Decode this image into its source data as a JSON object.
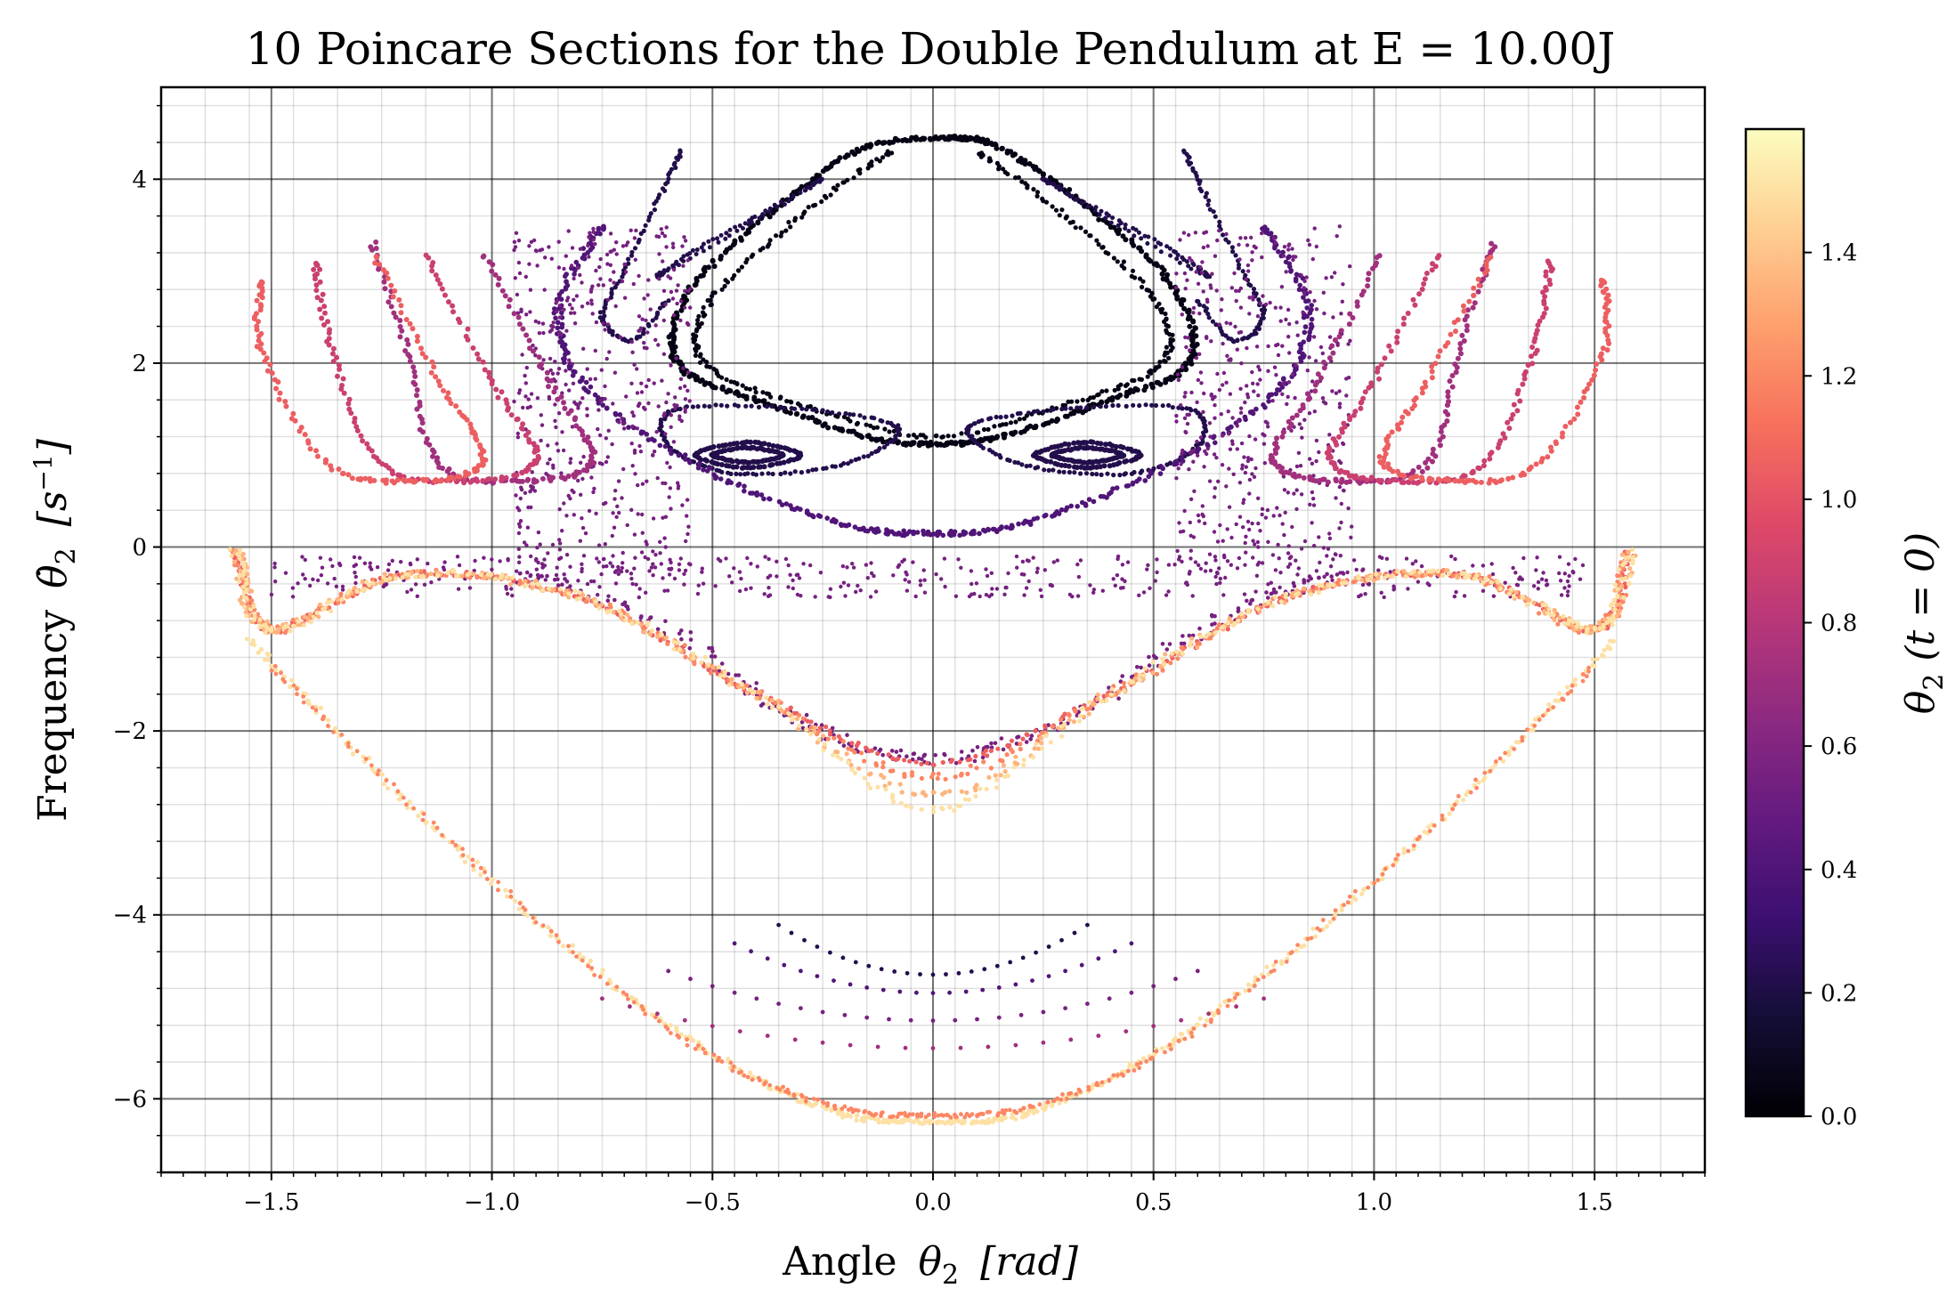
{
  "chart_data": {
    "type": "scatter",
    "title": "10 Poincare Sections for the Double Pendulum at E = 10.00J",
    "xlabel_text": "Angle",
    "xlabel_symbol": "θ",
    "xlabel_sub": "2",
    "xlabel_unit": "[rad]",
    "ylabel_text": "Frequency",
    "ylabel_symbol": "θ̇",
    "ylabel_sub": "2",
    "ylabel_unit": "[s",
    "ylabel_unit_sup": "−1",
    "ylabel_unit_close": "]",
    "xlim": [
      -1.75,
      1.75
    ],
    "ylim": [
      -6.8,
      5.0
    ],
    "xticks": [
      -1.5,
      -1.0,
      -0.5,
      0.0,
      0.5,
      1.0,
      1.5
    ],
    "xtick_labels": [
      "−1.5",
      "−1.0",
      "−0.5",
      "0.0",
      "0.5",
      "1.0",
      "1.5"
    ],
    "yticks": [
      -6,
      -4,
      -2,
      0,
      2,
      4
    ],
    "ytick_labels": [
      "−6",
      "−4",
      "−2",
      "0",
      "2",
      "4"
    ],
    "grid": true,
    "colormap": "magma",
    "colorbar": {
      "label_symbol": "θ",
      "label_sub": "2",
      "label_rest": "(t = 0)",
      "range": [
        0.0,
        1.6
      ],
      "ticks": [
        0.0,
        0.2,
        0.4,
        0.6,
        0.8,
        1.0,
        1.2,
        1.4
      ],
      "tick_labels": [
        "0.0",
        "0.2",
        "0.4",
        "0.6",
        "0.8",
        "1.0",
        "1.2",
        "1.4"
      ]
    },
    "series": [
      {
        "theta2_0": 0.05
      },
      {
        "theta2_0": 0.22
      },
      {
        "theta2_0": 0.4
      },
      {
        "theta2_0": 0.55
      },
      {
        "theta2_0": 0.72
      },
      {
        "theta2_0": 0.88
      },
      {
        "theta2_0": 1.05
      },
      {
        "theta2_0": 1.2
      },
      {
        "theta2_0": 1.35
      },
      {
        "theta2_0": 1.5
      }
    ]
  }
}
